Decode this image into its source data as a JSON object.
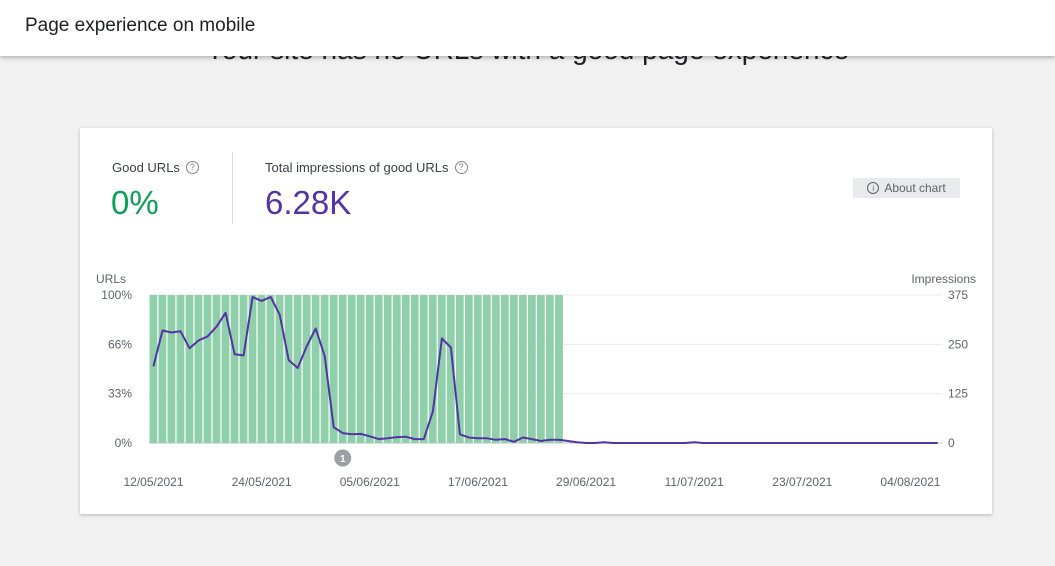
{
  "header": {
    "title": "Page experience on mobile"
  },
  "page": {
    "headline": "Your site has no URLs with a good page experience"
  },
  "summary": {
    "good_urls_label": "Good URLs",
    "good_urls_value": "0%",
    "impressions_label": "Total impressions of good URLs",
    "impressions_value": "6.28K",
    "help_glyph": "?",
    "about_chart_label": "About chart",
    "info_glyph": "i"
  },
  "colors": {
    "good": "#0f9d58",
    "impressions": "#5234a4",
    "bar": "#8fd0ab"
  },
  "chart_data": {
    "type": "bar",
    "left_axis_label": "URLs",
    "right_axis_label": "Impressions",
    "left_ticks": [
      "100%",
      "66%",
      "33%",
      "0%"
    ],
    "right_ticks": [
      "375",
      "250",
      "125",
      "0"
    ],
    "x_tick_labels": [
      "12/05/2021",
      "24/05/2021",
      "05/06/2021",
      "17/06/2021",
      "29/06/2021",
      "11/07/2021",
      "23/07/2021",
      "04/08/2021"
    ],
    "annotation": {
      "label": "1",
      "date": "02/06/2021"
    },
    "series": [
      {
        "name": "Good URLs (%)",
        "type": "bar",
        "axis": "left",
        "start_date": "12/05/2021",
        "count": 46,
        "value": 100
      },
      {
        "name": "Impressions",
        "type": "line",
        "axis": "right",
        "values": [
          195,
          285,
          280,
          283,
          240,
          260,
          270,
          295,
          330,
          225,
          222,
          370,
          360,
          370,
          325,
          210,
          190,
          245,
          290,
          220,
          40,
          25,
          22,
          23,
          17,
          10,
          12,
          15,
          16,
          10,
          10,
          80,
          265,
          242,
          22,
          14,
          12,
          12,
          8,
          10,
          3,
          14,
          10,
          5,
          8,
          8,
          5,
          2,
          0,
          0,
          2,
          0,
          0,
          0,
          0,
          0,
          0,
          0,
          0,
          0,
          2,
          0,
          0,
          0,
          0,
          0,
          0,
          0,
          0,
          0,
          0,
          0,
          0,
          0,
          0,
          0,
          0,
          0,
          0,
          0,
          0,
          0,
          0,
          0,
          0,
          0,
          0,
          0
        ]
      }
    ],
    "ylim_left": [
      0,
      100
    ],
    "ylim_right": [
      0,
      375
    ],
    "grid": true
  }
}
